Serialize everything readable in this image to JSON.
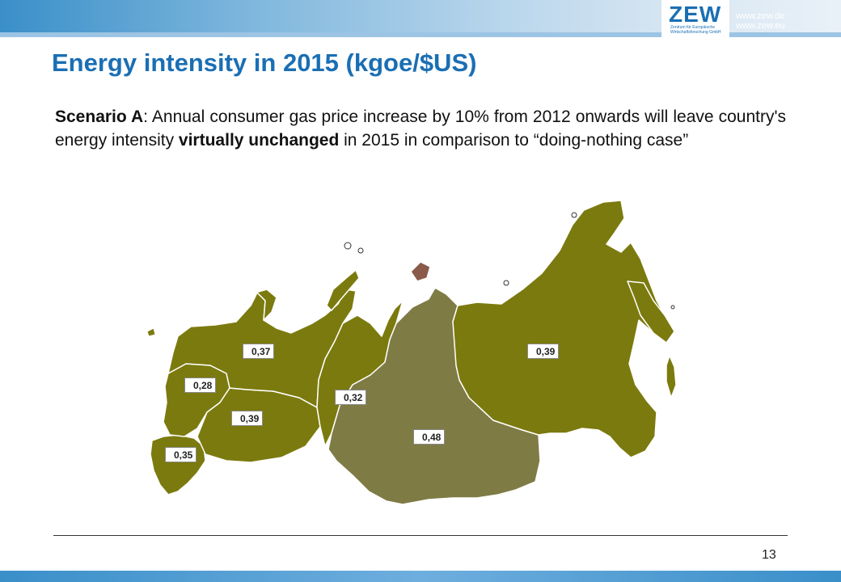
{
  "header": {
    "logo": "ZEW",
    "logo_sub": "Zentrum für Europäische Wirtschaftsforschung GmbH",
    "website": "www.zew.de · www.zew.eu"
  },
  "title": "Energy intensity in 2015 (kgoe/$US)",
  "scenario": {
    "label": "Scenario A",
    "text_1": ": Annual consumer gas price increase by 10% from 2012 onwards will leave country's energy intensity ",
    "emphasis": "virtually unchanged",
    "text_2": " in 2015 in comparison to “doing-nothing case”"
  },
  "map": {
    "colors": {
      "region": "#7b7a0e",
      "highlight": "#7f7b45",
      "border": "#ffffff"
    },
    "values": {
      "northwest": "0,37",
      "central": "0,28",
      "volga": "0,39",
      "south": "0,35",
      "urals": "0,32",
      "siberia": "0,48",
      "far_east": "0,39"
    }
  },
  "footer": {
    "page_number": "13"
  }
}
